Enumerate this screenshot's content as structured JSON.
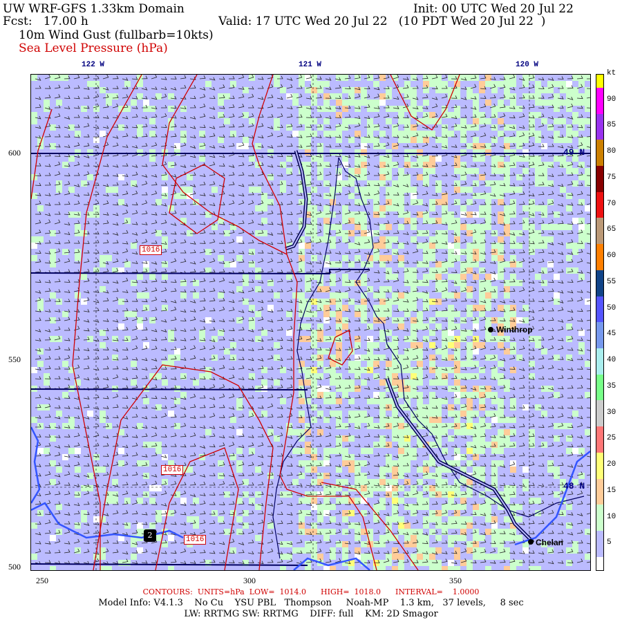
{
  "header": {
    "title": "UW WRF-GFS 1.33km Domain",
    "init": "Init: 00 UTC Wed 20 Jul 22",
    "fcst": "Fcst:   17.00 h",
    "valid": "Valid: 17 UTC Wed 20 Jul 22   (10 PDT Wed 20 Jul 22  )",
    "field1": "10m Wind Gust (fullbarb=10kts)",
    "field2": "Sea Level Pressure (hPa)"
  },
  "axes": {
    "top": [
      "122 W",
      "121 W",
      "120 W"
    ],
    "left": [
      "600",
      "550",
      "500"
    ],
    "bottom": [
      "250",
      "300",
      "350"
    ],
    "right": [
      "49 N",
      "48 N"
    ]
  },
  "map": {
    "places": [
      "Winthrop",
      "Chelan"
    ],
    "contour_labels": [
      "1016",
      "1016",
      "1016"
    ],
    "highway_shield": "2",
    "colors": {
      "contour": "#d00000",
      "border": "#000060",
      "water": "#3355ff",
      "background": "#bbbbff"
    }
  },
  "colorbar": {
    "unit": "kt",
    "labels": [
      "90",
      "85",
      "80",
      "75",
      "70",
      "65",
      "60",
      "55",
      "50",
      "45",
      "40",
      "35",
      "30",
      "25",
      "20",
      "15",
      "10",
      "5"
    ],
    "colors": [
      "#ffff00",
      "#ff00ff",
      "#9933ee",
      "#cc8000",
      "#880000",
      "#ee1111",
      "#bb9977",
      "#ff7f00",
      "#114488",
      "#5555ff",
      "#7799ee",
      "#aaeeee",
      "#77ff88",
      "#cccccc",
      "#ff7777",
      "#ffff77",
      "#ffcc99",
      "#ccffcc",
      "#bbbbff",
      "#ffffff"
    ]
  },
  "footer": {
    "contours": "CONTOURS:  UNITS=hPa  LOW=  1014.0      HIGH=  1018.0      INTERVAL=    1.0000",
    "model": "Model Info: V4.1.3    No Cu    YSU PBL   Thompson     Noah-MP    1.3 km,   37 levels,     8 sec",
    "physics": "LW: RRTMG SW: RRTMG    DIFF: full    KM: 2D Smagor"
  }
}
